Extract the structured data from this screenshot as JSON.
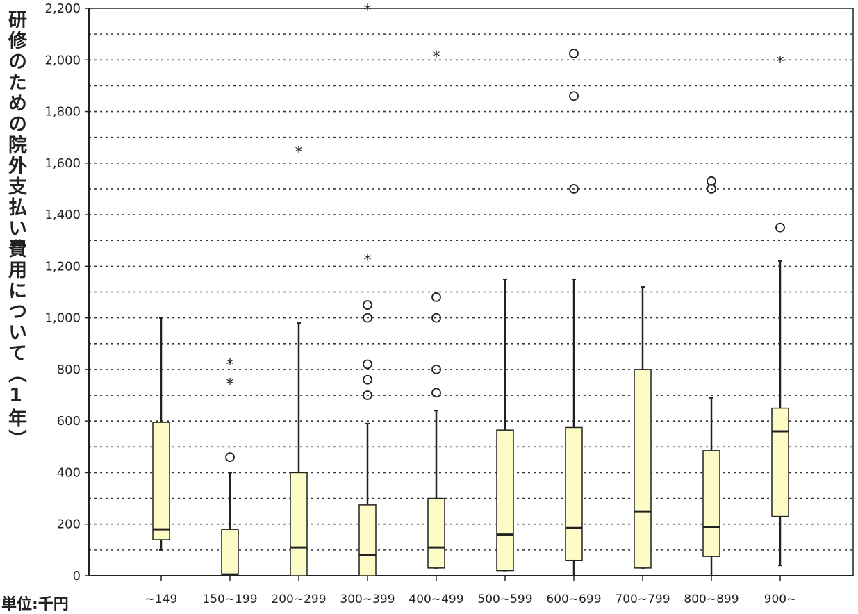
{
  "chart_data": {
    "type": "box",
    "title": "",
    "xlabel": "",
    "ylabel": "研修のための院外支払い費用について（1年）",
    "unit_note": "単位:千円",
    "ylim": [
      0,
      2200
    ],
    "yticks": [
      0,
      200,
      400,
      600,
      800,
      1000,
      1200,
      1400,
      1600,
      1800,
      2000,
      2200
    ],
    "ytick_labels": [
      "0",
      "200",
      "400",
      "600",
      "800",
      "1,000",
      "1,200",
      "1,400",
      "1,600",
      "1,800",
      "2,000",
      "2,200"
    ],
    "grid": "dotted horizontal every 100",
    "box_color": "#fdfcc6",
    "categories": [
      "~149",
      "150~199",
      "200~299",
      "300~399",
      "400~499",
      "500~599",
      "600~699",
      "700~799",
      "800~899",
      "900~"
    ],
    "boxes": [
      {
        "category": "~149",
        "min": 100,
        "q1": 140,
        "median": 180,
        "q3": 595,
        "max": 1000,
        "outliers": [],
        "extremes": []
      },
      {
        "category": "150~199",
        "min": 0,
        "q1": 5,
        "median": 5,
        "q3": 180,
        "max": 400,
        "outliers": [
          460
        ],
        "extremes": [
          750,
          825
        ]
      },
      {
        "category": "200~299",
        "min": 0,
        "q1": 0,
        "median": 110,
        "q3": 400,
        "max": 980,
        "outliers": [],
        "extremes": [
          1650
        ]
      },
      {
        "category": "300~399",
        "min": 0,
        "q1": 0,
        "median": 80,
        "q3": 275,
        "max": 590,
        "outliers": [
          700,
          760,
          820,
          1000,
          1050
        ],
        "extremes": [
          1230,
          2200
        ]
      },
      {
        "category": "400~499",
        "min": 30,
        "q1": 30,
        "median": 110,
        "q3": 300,
        "max": 640,
        "outliers": [
          710,
          800,
          1000,
          1080
        ],
        "extremes": [
          2020
        ]
      },
      {
        "category": "500~599",
        "min": 20,
        "q1": 20,
        "median": 160,
        "q3": 565,
        "max": 1150,
        "outliers": [],
        "extremes": []
      },
      {
        "category": "600~699",
        "min": 0,
        "q1": 60,
        "median": 185,
        "q3": 575,
        "max": 1150,
        "outliers": [
          1500,
          1860,
          2025
        ],
        "extremes": []
      },
      {
        "category": "700~799",
        "min": 30,
        "q1": 30,
        "median": 250,
        "q3": 800,
        "max": 1120,
        "outliers": [],
        "extremes": []
      },
      {
        "category": "800~899",
        "min": 0,
        "q1": 75,
        "median": 190,
        "q3": 485,
        "max": 690,
        "outliers": [
          1500,
          1530
        ],
        "extremes": []
      },
      {
        "category": "900~",
        "min": 40,
        "q1": 230,
        "median": 560,
        "q3": 650,
        "max": 1220,
        "outliers": [
          1350
        ],
        "extremes": [
          2000
        ]
      }
    ]
  }
}
